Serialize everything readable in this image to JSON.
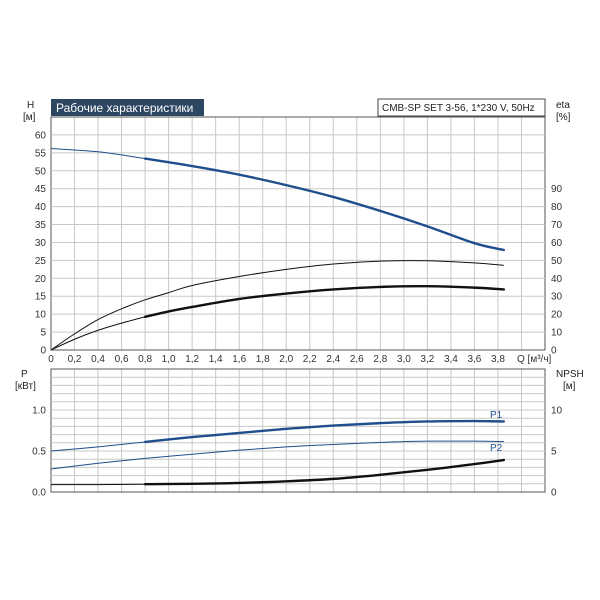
{
  "chart_data": [
    {
      "type": "line",
      "title": "Рабочие характеристики",
      "subtitle": "CMB-SP SET 3-56, 1*230 V, 50Hz",
      "xlabel": "Q [м³/ч]",
      "ylabel_left": [
        "H",
        "[м]"
      ],
      "ylabel_right": [
        "eta",
        "[%]"
      ],
      "xlim": [
        0,
        4.2
      ],
      "x_ticks": [
        "0",
        "0,2",
        "0,4",
        "0,6",
        "0,8",
        "1,0",
        "1,2",
        "1,4",
        "1,6",
        "1,8",
        "2,0",
        "2,2",
        "2,4",
        "2,6",
        "2,8",
        "3,0",
        "3,2",
        "3,4",
        "3,6",
        "3,8"
      ],
      "x_tick_values": [
        0,
        0.2,
        0.4,
        0.6,
        0.8,
        1.0,
        1.2,
        1.4,
        1.6,
        1.8,
        2.0,
        2.2,
        2.4,
        2.6,
        2.8,
        3.0,
        3.2,
        3.4,
        3.6,
        3.8
      ],
      "ylim_left": [
        0,
        65
      ],
      "y_ticks_left": [
        0,
        5,
        10,
        15,
        20,
        25,
        30,
        35,
        40,
        45,
        50,
        55,
        60
      ],
      "ylim_right": [
        0,
        130
      ],
      "y_ticks_right": [
        0,
        10,
        20,
        30,
        40,
        50,
        60,
        70,
        80,
        90
      ],
      "grid": true,
      "series": [
        {
          "axis": "left",
          "color": "#1f4e8c",
          "x": [
            0,
            0.4,
            0.8,
            1.2,
            1.6,
            2.0,
            2.4,
            2.8,
            3.2,
            3.6,
            3.85
          ],
          "y": [
            56.2,
            55.3,
            53.4,
            51.3,
            48.9,
            46.0,
            42.7,
            38.8,
            34.5,
            29.8,
            27.9
          ],
          "bold_from": 0.8
        },
        {
          "axis": "right",
          "color": "#111111",
          "x": [
            0,
            0.2,
            0.4,
            0.6,
            0.8,
            1.0,
            1.2,
            1.6,
            2.0,
            2.4,
            2.8,
            3.2,
            3.6,
            3.85
          ],
          "y": [
            0,
            9,
            17,
            23,
            28,
            32,
            36,
            41,
            45,
            48,
            49.6,
            49.8,
            48.6,
            47.2
          ],
          "bold_from": null
        },
        {
          "axis": "right",
          "color": "#111111",
          "x": [
            0,
            0.2,
            0.4,
            0.6,
            0.8,
            1.0,
            1.2,
            1.6,
            2.0,
            2.4,
            2.8,
            3.2,
            3.6,
            3.85
          ],
          "y": [
            0,
            6,
            11,
            15,
            18.5,
            21.5,
            24,
            28.5,
            31.5,
            33.8,
            35.2,
            35.6,
            34.8,
            33.8
          ],
          "bold_from": 0.8
        }
      ]
    },
    {
      "type": "line",
      "xlim": [
        0,
        4.2
      ],
      "ylabel_left": [
        "P",
        "[кВт]"
      ],
      "ylabel_right": [
        "NPSH",
        "[м]"
      ],
      "ylim_left": [
        0,
        1.5
      ],
      "y_ticks_left": [
        "0.0",
        "0.5",
        "1.0"
      ],
      "y_tick_values_left": [
        0,
        0.5,
        1.0
      ],
      "ylim_right": [
        0,
        15
      ],
      "y_ticks_right": [
        0,
        5,
        10
      ],
      "grid": true,
      "series": [
        {
          "name": "P1",
          "axis": "left",
          "color": "#1f4e8c",
          "x": [
            0,
            0.4,
            0.8,
            1.2,
            1.6,
            2.0,
            2.4,
            2.8,
            3.2,
            3.6,
            3.85
          ],
          "y": [
            0.5,
            0.55,
            0.61,
            0.67,
            0.72,
            0.77,
            0.81,
            0.84,
            0.86,
            0.865,
            0.86
          ],
          "bold_from": 0.8
        },
        {
          "name": "P2",
          "axis": "left",
          "color": "#1f4e8c",
          "x": [
            0,
            0.4,
            0.8,
            1.2,
            1.6,
            2.0,
            2.4,
            2.8,
            3.2,
            3.6,
            3.85
          ],
          "y": [
            0.28,
            0.35,
            0.41,
            0.46,
            0.51,
            0.55,
            0.58,
            0.605,
            0.62,
            0.62,
            0.615
          ],
          "bold_from": null
        },
        {
          "axis": "right",
          "color": "#111111",
          "x": [
            0,
            0.4,
            0.8,
            1.2,
            1.6,
            2.0,
            2.4,
            2.8,
            3.2,
            3.6,
            3.85
          ],
          "y": [
            0.9,
            0.9,
            0.95,
            1.0,
            1.1,
            1.3,
            1.6,
            2.1,
            2.7,
            3.4,
            3.9
          ],
          "bold_from": 0.8
        }
      ]
    }
  ]
}
